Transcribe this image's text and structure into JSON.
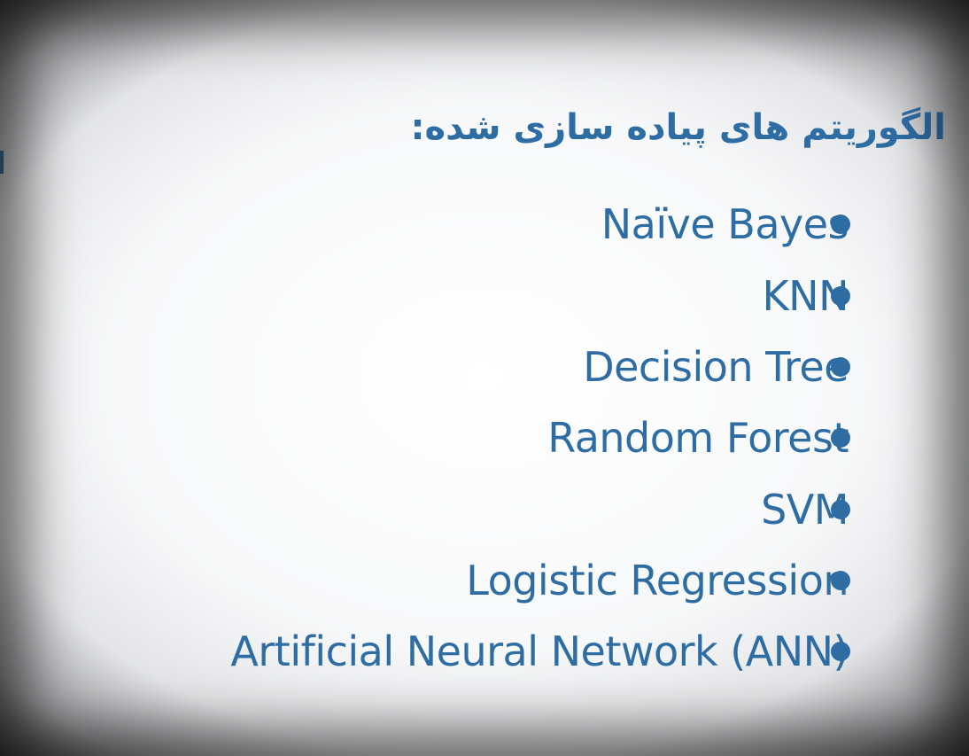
{
  "slide": {
    "title": "الگوریتم های پیاده سازی شده:",
    "items": [
      "Naïve Bayes",
      "KNN",
      "Decision Tree",
      "Random Forest",
      "SVM",
      "Logistic Regression",
      "Artificial Neural Network (ANN)"
    ]
  },
  "colors": {
    "text": "#2e6da4",
    "bullet": "#2e6da4",
    "background": "#f7f8f9"
  }
}
